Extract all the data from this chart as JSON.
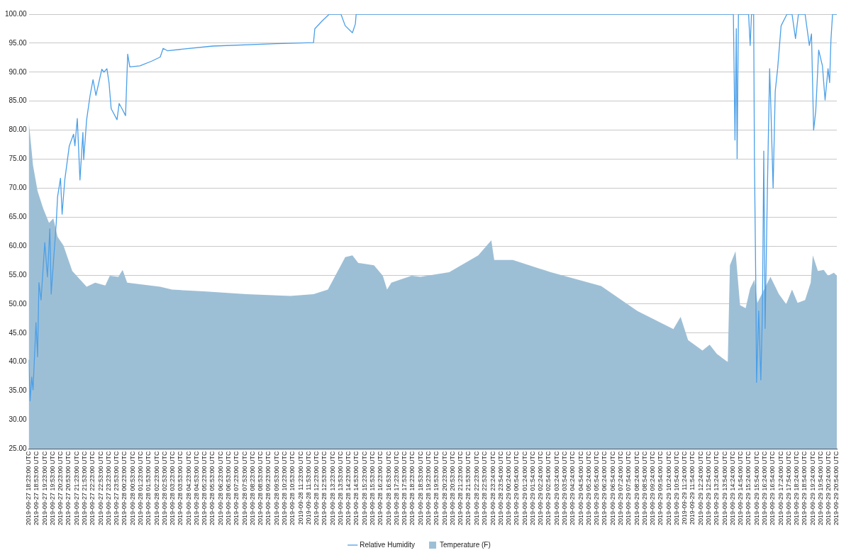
{
  "chart_data": {
    "type": "line",
    "legend": "bottom",
    "grid": "y",
    "xlim": [
      "2019-09-27T18:23",
      "2019-09-29T20:54"
    ],
    "ylim": [
      25,
      100
    ],
    "yticks": [
      {
        "value": 25,
        "label": "25.00"
      },
      {
        "value": 30,
        "label": "30.00"
      },
      {
        "value": 35,
        "label": "35.00"
      },
      {
        "value": 40,
        "label": "40.00"
      },
      {
        "value": 45,
        "label": "45.00"
      },
      {
        "value": 50,
        "label": "50.00"
      },
      {
        "value": 55,
        "label": "55.00"
      },
      {
        "value": 60,
        "label": "60.00"
      },
      {
        "value": 65,
        "label": "65.00"
      },
      {
        "value": 70,
        "label": "70.00"
      },
      {
        "value": 75,
        "label": "75.00"
      },
      {
        "value": 80,
        "label": "80.00"
      },
      {
        "value": 85,
        "label": "85.00"
      },
      {
        "value": 90,
        "label": "90.00"
      },
      {
        "value": 95,
        "label": "95.00"
      },
      {
        "value": 100,
        "label": "100.00"
      }
    ],
    "xticks": [
      {
        "value": "2019-09-27T18:23",
        "label": "2019-09-27 18:23:00 UTC"
      },
      {
        "value": "2019-09-27T18:53",
        "label": "2019-09-27 18:53:00 UTC"
      },
      {
        "value": "2019-09-27T19:23",
        "label": "2019-09-27 19:23:00 UTC"
      },
      {
        "value": "2019-09-27T19:53",
        "label": "2019-09-27 19:53:00 UTC"
      },
      {
        "value": "2019-09-27T20:23",
        "label": "2019-09-27 20:23:00 UTC"
      },
      {
        "value": "2019-09-27T20:53",
        "label": "2019-09-27 20:53:00 UTC"
      },
      {
        "value": "2019-09-27T21:23",
        "label": "2019-09-27 21:23:00 UTC"
      },
      {
        "value": "2019-09-27T21:53",
        "label": "2019-09-27 21:53:00 UTC"
      },
      {
        "value": "2019-09-27T22:23",
        "label": "2019-09-27 22:23:00 UTC"
      },
      {
        "value": "2019-09-27T22:53",
        "label": "2019-09-27 22:53:00 UTC"
      },
      {
        "value": "2019-09-27T23:23",
        "label": "2019-09-27 23:23:00 UTC"
      },
      {
        "value": "2019-09-27T23:53",
        "label": "2019-09-27 23:53:00 UTC"
      },
      {
        "value": "2019-09-28T00:23",
        "label": "2019-09-28 00:23:00 UTC"
      },
      {
        "value": "2019-09-28T00:53",
        "label": "2019-09-28 00:53:00 UTC"
      },
      {
        "value": "2019-09-28T01:23",
        "label": "2019-09-28 01:23:00 UTC"
      },
      {
        "value": "2019-09-28T01:53",
        "label": "2019-09-28 01:53:00 UTC"
      },
      {
        "value": "2019-09-28T02:23",
        "label": "2019-09-28 02:23:00 UTC"
      },
      {
        "value": "2019-09-28T02:53",
        "label": "2019-09-28 02:53:00 UTC"
      },
      {
        "value": "2019-09-28T03:23",
        "label": "2019-09-28 03:23:00 UTC"
      },
      {
        "value": "2019-09-28T03:53",
        "label": "2019-09-28 03:53:00 UTC"
      },
      {
        "value": "2019-09-28T04:23",
        "label": "2019-09-28 04:23:00 UTC"
      },
      {
        "value": "2019-09-28T04:53",
        "label": "2019-09-28 04:53:00 UTC"
      },
      {
        "value": "2019-09-28T05:23",
        "label": "2019-09-28 05:23:00 UTC"
      },
      {
        "value": "2019-09-28T05:53",
        "label": "2019-09-28 05:53:00 UTC"
      },
      {
        "value": "2019-09-28T06:23",
        "label": "2019-09-28 06:23:00 UTC"
      },
      {
        "value": "2019-09-28T06:53",
        "label": "2019-09-28 06:53:00 UTC"
      },
      {
        "value": "2019-09-28T07:23",
        "label": "2019-09-28 07:23:00 UTC"
      },
      {
        "value": "2019-09-28T07:53",
        "label": "2019-09-28 07:53:00 UTC"
      },
      {
        "value": "2019-09-28T08:23",
        "label": "2019-09-28 08:23:00 UTC"
      },
      {
        "value": "2019-09-28T08:53",
        "label": "2019-09-28 08:53:00 UTC"
      },
      {
        "value": "2019-09-28T09:23",
        "label": "2019-09-28 09:23:00 UTC"
      },
      {
        "value": "2019-09-28T09:53",
        "label": "2019-09-28 09:53:00 UTC"
      },
      {
        "value": "2019-09-28T10:23",
        "label": "2019-09-28 10:23:00 UTC"
      },
      {
        "value": "2019-09-28T10:53",
        "label": "2019-09-28 10:53:00 UTC"
      },
      {
        "value": "2019-09-28T11:23",
        "label": "2019-09-28 11:23:00 UTC"
      },
      {
        "value": "2019-09-28T11:53",
        "label": "2019-09-28 11:53:00 UTC"
      },
      {
        "value": "2019-09-28T12:23",
        "label": "2019-09-28 12:23:00 UTC"
      },
      {
        "value": "2019-09-28T12:53",
        "label": "2019-09-28 12:53:00 UTC"
      },
      {
        "value": "2019-09-28T13:23",
        "label": "2019-09-28 13:23:00 UTC"
      },
      {
        "value": "2019-09-28T13:53",
        "label": "2019-09-28 13:53:00 UTC"
      },
      {
        "value": "2019-09-28T14:23",
        "label": "2019-09-28 14:23:00 UTC"
      },
      {
        "value": "2019-09-28T14:53",
        "label": "2019-09-28 14:53:00 UTC"
      },
      {
        "value": "2019-09-28T15:23",
        "label": "2019-09-28 15:23:00 UTC"
      },
      {
        "value": "2019-09-28T15:53",
        "label": "2019-09-28 15:53:00 UTC"
      },
      {
        "value": "2019-09-28T16:23",
        "label": "2019-09-28 16:23:00 UTC"
      },
      {
        "value": "2019-09-28T16:53",
        "label": "2019-09-28 16:53:00 UTC"
      },
      {
        "value": "2019-09-28T17:23",
        "label": "2019-09-28 17:23:00 UTC"
      },
      {
        "value": "2019-09-28T17:53",
        "label": "2019-09-28 17:53:00 UTC"
      },
      {
        "value": "2019-09-28T18:23",
        "label": "2019-09-28 18:23:00 UTC"
      },
      {
        "value": "2019-09-28T18:53",
        "label": "2019-09-28 18:53:00 UTC"
      },
      {
        "value": "2019-09-28T19:23",
        "label": "2019-09-28 19:23:00 UTC"
      },
      {
        "value": "2019-09-28T19:53",
        "label": "2019-09-28 19:53:00 UTC"
      },
      {
        "value": "2019-09-28T20:23",
        "label": "2019-09-28 20:23:00 UTC"
      },
      {
        "value": "2019-09-28T20:53",
        "label": "2019-09-28 20:53:00 UTC"
      },
      {
        "value": "2019-09-28T21:23",
        "label": "2019-09-28 21:23:00 UTC"
      },
      {
        "value": "2019-09-28T21:53",
        "label": "2019-09-28 21:53:00 UTC"
      },
      {
        "value": "2019-09-28T22:23",
        "label": "2019-09-28 22:23:00 UTC"
      },
      {
        "value": "2019-09-28T22:53",
        "label": "2019-09-28 22:53:00 UTC"
      },
      {
        "value": "2019-09-28T23:24",
        "label": "2019-09-28 23:24:00 UTC"
      },
      {
        "value": "2019-09-28T23:54",
        "label": "2019-09-28 23:54:00 UTC"
      },
      {
        "value": "2019-09-29T00:24",
        "label": "2019-09-29 00:24:00 UTC"
      },
      {
        "value": "2019-09-29T00:54",
        "label": "2019-09-29 00:54:00 UTC"
      },
      {
        "value": "2019-09-29T01:24",
        "label": "2019-09-29 01:24:00 UTC"
      },
      {
        "value": "2019-09-29T01:54",
        "label": "2019-09-29 01:54:00 UTC"
      },
      {
        "value": "2019-09-29T02:24",
        "label": "2019-09-29 02:24:00 UTC"
      },
      {
        "value": "2019-09-29T02:54",
        "label": "2019-09-29 02:54:00 UTC"
      },
      {
        "value": "2019-09-29T03:24",
        "label": "2019-09-29 03:24:00 UTC"
      },
      {
        "value": "2019-09-29T03:54",
        "label": "2019-09-29 03:54:00 UTC"
      },
      {
        "value": "2019-09-29T04:24",
        "label": "2019-09-29 04:24:00 UTC"
      },
      {
        "value": "2019-09-29T04:54",
        "label": "2019-09-29 04:54:00 UTC"
      },
      {
        "value": "2019-09-29T05:24",
        "label": "2019-09-29 05:24:00 UTC"
      },
      {
        "value": "2019-09-29T05:54",
        "label": "2019-09-29 05:54:00 UTC"
      },
      {
        "value": "2019-09-29T06:24",
        "label": "2019-09-29 06:24:00 UTC"
      },
      {
        "value": "2019-09-29T06:54",
        "label": "2019-09-29 06:54:00 UTC"
      },
      {
        "value": "2019-09-29T07:24",
        "label": "2019-09-29 07:24:00 UTC"
      },
      {
        "value": "2019-09-29T07:54",
        "label": "2019-09-29 07:54:00 UTC"
      },
      {
        "value": "2019-09-29T08:24",
        "label": "2019-09-29 08:24:00 UTC"
      },
      {
        "value": "2019-09-29T08:54",
        "label": "2019-09-29 08:54:00 UTC"
      },
      {
        "value": "2019-09-29T09:24",
        "label": "2019-09-29 09:24:00 UTC"
      },
      {
        "value": "2019-09-29T09:54",
        "label": "2019-09-29 09:54:00 UTC"
      },
      {
        "value": "2019-09-29T10:24",
        "label": "2019-09-29 10:24:00 UTC"
      },
      {
        "value": "2019-09-29T10:54",
        "label": "2019-09-29 10:54:00 UTC"
      },
      {
        "value": "2019-09-29T11:24",
        "label": "2019-09-29 11:24:00 UTC"
      },
      {
        "value": "2019-09-29T11:54",
        "label": "2019-09-29 11:54:00 UTC"
      },
      {
        "value": "2019-09-29T12:24",
        "label": "2019-09-29 12:24:00 UTC"
      },
      {
        "value": "2019-09-29T12:54",
        "label": "2019-09-29 12:54:00 UTC"
      },
      {
        "value": "2019-09-29T13:24",
        "label": "2019-09-29 13:24:00 UTC"
      },
      {
        "value": "2019-09-29T13:54",
        "label": "2019-09-29 13:54:00 UTC"
      },
      {
        "value": "2019-09-29T14:24",
        "label": "2019-09-29 14:24:00 UTC"
      },
      {
        "value": "2019-09-29T14:54",
        "label": "2019-09-29 14:54:00 UTC"
      },
      {
        "value": "2019-09-29T15:24",
        "label": "2019-09-29 15:24:00 UTC"
      },
      {
        "value": "2019-09-29T15:54",
        "label": "2019-09-29 15:54:00 UTC"
      },
      {
        "value": "2019-09-29T16:24",
        "label": "2019-09-29 16:24:00 UTC"
      },
      {
        "value": "2019-09-29T16:54",
        "label": "2019-09-29 16:54:00 UTC"
      },
      {
        "value": "2019-09-29T17:24",
        "label": "2019-09-29 17:24:00 UTC"
      },
      {
        "value": "2019-09-29T17:54",
        "label": "2019-09-29 17:54:00 UTC"
      },
      {
        "value": "2019-09-29T18:24",
        "label": "2019-09-29 18:24:00 UTC"
      },
      {
        "value": "2019-09-29T18:54",
        "label": "2019-09-29 18:54:00 UTC"
      },
      {
        "value": "2019-09-29T19:24",
        "label": "2019-09-29 19:24:00 UTC"
      },
      {
        "value": "2019-09-29T19:54",
        "label": "2019-09-29 19:54:00 UTC"
      },
      {
        "value": "2019-09-29T20:24",
        "label": "2019-09-29 20:24:00 UTC"
      },
      {
        "value": "2019-09-29T20:54",
        "label": "2019-09-29 20:54:00 UTC"
      }
    ],
    "series": [
      {
        "name": "Relative Humidity",
        "type": "line",
        "color": "#4a9fe8",
        "x": [
          "2019-09-27T18:23",
          "2019-09-27T18:28",
          "2019-09-27T18:34",
          "2019-09-27T18:39",
          "2019-09-27T18:50",
          "2019-09-27T18:56",
          "2019-09-27T19:01",
          "2019-09-27T19:09",
          "2019-09-27T19:23",
          "2019-09-27T19:33",
          "2019-09-27T19:42",
          "2019-09-27T19:47",
          "2019-09-27T20:06",
          "2019-09-27T20:11",
          "2019-09-27T20:22",
          "2019-09-27T20:28",
          "2019-09-27T20:38",
          "2019-09-27T20:55",
          "2019-09-27T21:11",
          "2019-09-27T21:16",
          "2019-09-27T21:25",
          "2019-09-27T21:35",
          "2019-09-27T21:46",
          "2019-09-27T21:49",
          "2019-09-27T22:00",
          "2019-09-27T22:13",
          "2019-09-27T22:24",
          "2019-09-27T22:35",
          "2019-09-27T22:57",
          "2019-09-27T23:05",
          "2019-09-27T23:16",
          "2019-09-27T23:24",
          "2019-09-27T23:32",
          "2019-09-27T23:54",
          "2019-09-28T00:02",
          "2019-09-28T00:15",
          "2019-09-28T00:26",
          "2019-09-28T00:34",
          "2019-09-28T00:42",
          "2019-09-28T01:20",
          "2019-09-28T02:04",
          "2019-09-28T02:36",
          "2019-09-28T02:47",
          "2019-09-28T03:03",
          "2019-09-28T05:53",
          "2019-09-28T09:50",
          "2019-09-28T12:11",
          "2019-09-28T12:16",
          "2019-09-28T12:43",
          "2019-09-28T13:10",
          "2019-09-28T13:54",
          "2019-09-28T14:10",
          "2019-09-28T14:37",
          "2019-09-28T14:48",
          "2019-09-28T14:51",
          "2019-09-29T14:26",
          "2019-09-29T14:32",
          "2019-09-29T14:37",
          "2019-09-29T14:40",
          "2019-09-29T14:45",
          "2019-09-29T15:23",
          "2019-09-29T15:29",
          "2019-09-29T15:34",
          "2019-09-29T15:42",
          "2019-09-29T15:45",
          "2019-09-29T15:50",
          "2019-09-29T15:53",
          "2019-09-29T16:01",
          "2019-09-29T16:09",
          "2019-09-29T16:15",
          "2019-09-29T16:20",
          "2019-09-29T16:25",
          "2019-09-29T16:34",
          "2019-09-29T16:42",
          "2019-09-29T16:47",
          "2019-09-29T16:55",
          "2019-09-29T17:03",
          "2019-09-29T17:12",
          "2019-09-29T17:25",
          "2019-09-29T17:47",
          "2019-09-29T18:06",
          "2019-09-29T18:19",
          "2019-09-29T18:30",
          "2019-09-29T18:55",
          "2019-09-29T19:11",
          "2019-09-29T19:19",
          "2019-09-29T19:27",
          "2019-09-29T19:35",
          "2019-09-29T19:46",
          "2019-09-29T20:00",
          "2019-09-29T20:10",
          "2019-09-29T20:21",
          "2019-09-29T20:27",
          "2019-09-29T20:32",
          "2019-09-29T20:38",
          "2019-09-29T20:54"
        ],
        "values": [
          40.4,
          33.3,
          37.4,
          35.2,
          46.8,
          40.9,
          53.7,
          50.7,
          60.6,
          54.7,
          63,
          51.7,
          64,
          68.5,
          71.7,
          65.5,
          71.4,
          77.3,
          79.3,
          77.3,
          82,
          71.4,
          79.6,
          74.9,
          81.8,
          86,
          88.7,
          86,
          90.5,
          90,
          90.6,
          88.2,
          83.7,
          81.8,
          84.6,
          83.5,
          82.5,
          93.1,
          90.9,
          91.1,
          91.9,
          92.6,
          94.1,
          93.7,
          94.5,
          94.9,
          95.1,
          97.5,
          98.8,
          100,
          100,
          98,
          96.8,
          98.3,
          100,
          100,
          78.3,
          97.5,
          75.1,
          100,
          100,
          94.6,
          100,
          100,
          74.9,
          53.7,
          36.5,
          48.8,
          36.9,
          48.8,
          76.4,
          45.8,
          70.9,
          90.6,
          83.3,
          70,
          86.7,
          90.6,
          98,
          100,
          100,
          95.8,
          100,
          100,
          94.6,
          96.6,
          80,
          83.3,
          93.8,
          91.1,
          85.2,
          90.6,
          88.2,
          95.6,
          100,
          100
        ]
      },
      {
        "name": "Temperature (F)",
        "type": "area",
        "color": "#9dbfd6",
        "x": [
          "2019-09-27T18:23",
          "2019-09-27T18:39",
          "2019-09-27T18:56",
          "2019-09-27T19:17",
          "2019-09-27T19:39",
          "2019-09-27T19:55",
          "2019-09-27T20:11",
          "2019-09-27T20:33",
          "2019-09-27T21:06",
          "2019-09-27T22:00",
          "2019-09-27T22:32",
          "2019-09-27T23:10",
          "2019-09-27T23:27",
          "2019-09-27T23:59",
          "2019-09-28T00:15",
          "2019-09-28T00:32",
          "2019-09-28T02:36",
          "2019-09-28T03:20",
          "2019-09-28T05:19",
          "2019-09-28T08:01",
          "2019-09-28T10:44",
          "2019-09-28T12:11",
          "2019-09-28T13:05",
          "2019-09-28T14:10",
          "2019-09-28T14:37",
          "2019-09-28T14:59",
          "2019-09-28T15:58",
          "2019-09-28T16:31",
          "2019-09-28T16:47",
          "2019-09-28T17:03",
          "2019-09-28T18:19",
          "2019-09-28T18:52",
          "2019-09-28T20:40",
          "2019-09-28T22:29",
          "2019-09-28T23:18",
          "2019-09-28T23:29",
          "2019-09-29T00:39",
          "2019-09-29T03:01",
          "2019-09-29T06:10",
          "2019-09-29T08:26",
          "2019-09-29T10:41",
          "2019-09-29T11:08",
          "2019-09-29T11:36",
          "2019-09-29T12:30",
          "2019-09-29T12:57",
          "2019-09-29T13:24",
          "2019-09-29T14:05",
          "2019-09-29T14:13",
          "2019-09-29T14:34",
          "2019-09-29T14:51",
          "2019-09-29T15:12",
          "2019-09-29T15:29",
          "2019-09-29T15:45",
          "2019-09-29T15:56",
          "2019-09-29T16:45",
          "2019-09-29T17:17",
          "2019-09-29T17:44",
          "2019-09-29T18:06",
          "2019-09-29T18:27",
          "2019-09-29T18:55",
          "2019-09-29T19:16",
          "2019-09-29T19:24",
          "2019-09-29T19:43",
          "2019-09-29T20:05",
          "2019-09-29T20:21",
          "2019-09-29T20:43",
          "2019-09-29T20:54"
        ],
        "values": [
          81.5,
          73.9,
          69.5,
          66.5,
          64,
          64.8,
          61.6,
          60.1,
          55.7,
          53,
          53.7,
          53.2,
          54.9,
          54.7,
          55.9,
          53.7,
          53,
          52.5,
          52.2,
          51.7,
          51.4,
          51.7,
          52.5,
          58.1,
          58.4,
          57.1,
          56.7,
          54.9,
          52.5,
          53.7,
          54.9,
          54.7,
          55.5,
          58.4,
          61,
          57.6,
          57.6,
          55.5,
          53.1,
          48.8,
          45.7,
          47.8,
          43.8,
          42,
          43,
          41.4,
          40,
          56.7,
          59.1,
          49.8,
          49.3,
          52.7,
          54.2,
          50.2,
          54.7,
          51.7,
          50,
          52.5,
          50.2,
          50.7,
          53.7,
          58.4,
          55.7,
          55.9,
          54.9,
          55.4,
          54.9
        ]
      }
    ]
  }
}
